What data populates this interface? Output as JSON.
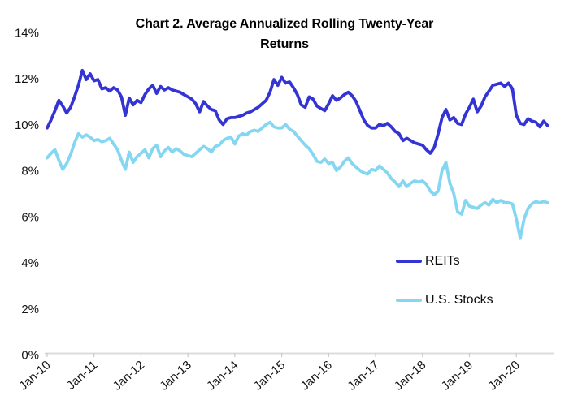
{
  "chart_data": {
    "type": "line",
    "title": "Chart 2. Average Annualized Rolling Twenty-Year Returns",
    "xlabel": "",
    "ylabel": "",
    "ylim": [
      0,
      14
    ],
    "y_tick_step": 2,
    "y_tick_labels": [
      "0%",
      "2%",
      "4%",
      "6%",
      "8%",
      "10%",
      "12%",
      "14%"
    ],
    "x_tick_labels": [
      "Jan-10",
      "Jan-11",
      "Jan-12",
      "Jan-13",
      "Jan-14",
      "Jan-15",
      "Jan-16",
      "Jan-17",
      "Jan-18",
      "Jan-19",
      "Jan-20"
    ],
    "x_frequency": "monthly",
    "x_start": "Jan-10",
    "x_end": "Sep-20",
    "grid": "off",
    "legend_position": "center-right",
    "axis_line_color": "#dcdcdc",
    "series": [
      {
        "name": "REITs",
        "color": "#3434d4",
        "values": [
          9.85,
          10.2,
          10.6,
          11.05,
          10.8,
          10.5,
          10.75,
          11.2,
          11.7,
          12.35,
          11.95,
          12.2,
          11.9,
          11.95,
          11.55,
          11.6,
          11.45,
          11.6,
          11.5,
          11.2,
          10.4,
          11.15,
          10.85,
          11.05,
          10.95,
          11.3,
          11.55,
          11.7,
          11.35,
          11.65,
          11.5,
          11.6,
          11.5,
          11.45,
          11.4,
          11.3,
          11.2,
          11.1,
          10.9,
          10.55,
          11.0,
          10.8,
          10.65,
          10.6,
          10.2,
          10.0,
          10.25,
          10.3,
          10.3,
          10.35,
          10.4,
          10.5,
          10.55,
          10.65,
          10.75,
          10.9,
          11.05,
          11.4,
          11.95,
          11.7,
          12.05,
          11.8,
          11.85,
          11.6,
          11.3,
          10.85,
          10.75,
          11.2,
          11.1,
          10.8,
          10.7,
          10.6,
          10.9,
          11.25,
          11.05,
          11.15,
          11.3,
          11.4,
          11.25,
          11.0,
          10.6,
          10.2,
          9.95,
          9.85,
          9.85,
          10.0,
          9.95,
          10.05,
          9.9,
          9.7,
          9.6,
          9.3,
          9.4,
          9.3,
          9.2,
          9.15,
          9.1,
          8.9,
          8.75,
          9.0,
          9.6,
          10.3,
          10.65,
          10.2,
          10.3,
          10.05,
          10.0,
          10.45,
          10.75,
          11.1,
          10.55,
          10.8,
          11.2,
          11.45,
          11.7,
          11.75,
          11.8,
          11.65,
          11.8,
          11.55,
          10.4,
          10.05,
          10.0,
          10.25,
          10.15,
          10.1,
          9.9,
          10.15,
          9.95
        ]
      },
      {
        "name": "U.S. Stocks",
        "color": "#85d7f1",
        "values": [
          8.55,
          8.75,
          8.9,
          8.45,
          8.05,
          8.3,
          8.7,
          9.2,
          9.6,
          9.45,
          9.55,
          9.45,
          9.3,
          9.35,
          9.25,
          9.3,
          9.4,
          9.15,
          8.9,
          8.45,
          8.05,
          8.8,
          8.35,
          8.6,
          8.75,
          8.9,
          8.55,
          8.95,
          9.1,
          8.6,
          8.85,
          9.0,
          8.8,
          8.95,
          8.85,
          8.7,
          8.65,
          8.6,
          8.75,
          8.9,
          9.05,
          8.95,
          8.8,
          9.05,
          9.1,
          9.3,
          9.4,
          9.45,
          9.15,
          9.5,
          9.6,
          9.55,
          9.7,
          9.75,
          9.7,
          9.85,
          10.0,
          10.1,
          9.9,
          9.85,
          9.85,
          10.0,
          9.8,
          9.7,
          9.5,
          9.3,
          9.1,
          8.95,
          8.7,
          8.4,
          8.35,
          8.5,
          8.3,
          8.35,
          8.0,
          8.15,
          8.4,
          8.55,
          8.3,
          8.15,
          8.0,
          7.9,
          7.85,
          8.05,
          8.0,
          8.2,
          8.05,
          7.9,
          7.65,
          7.5,
          7.3,
          7.55,
          7.3,
          7.45,
          7.55,
          7.5,
          7.55,
          7.4,
          7.1,
          6.95,
          7.1,
          8.0,
          8.35,
          7.45,
          7.0,
          6.2,
          6.1,
          6.7,
          6.45,
          6.4,
          6.35,
          6.5,
          6.6,
          6.5,
          6.75,
          6.6,
          6.7,
          6.6,
          6.6,
          6.55,
          5.9,
          5.05,
          5.9,
          6.35,
          6.55,
          6.65,
          6.6,
          6.65,
          6.6
        ]
      }
    ]
  }
}
